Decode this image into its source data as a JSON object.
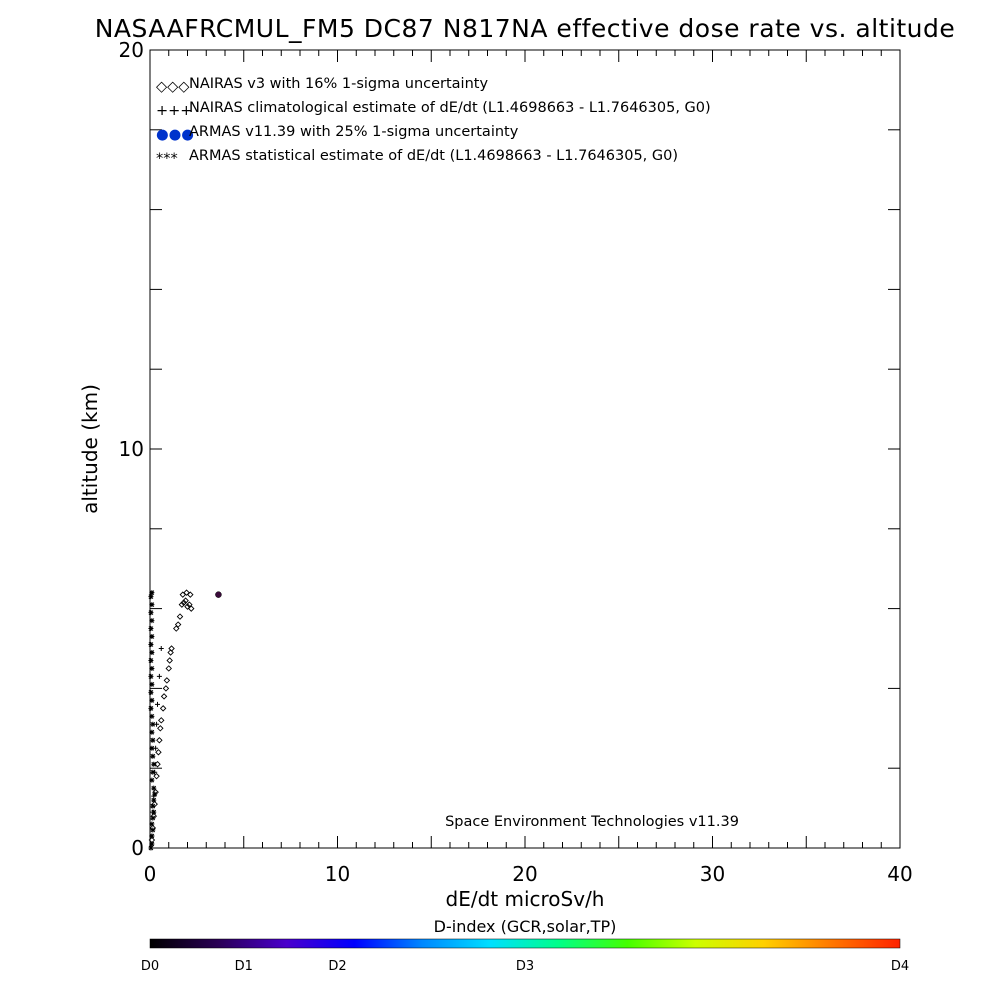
{
  "chart_data": {
    "type": "scatter",
    "title": "NASAAFRCMUL_FM5 DC87 N817NA effective dose rate vs. altitude",
    "xlabel": "dE/dt microSv/h",
    "ylabel": "altitude (km)",
    "xlim": [
      0,
      40
    ],
    "ylim": [
      0,
      20
    ],
    "x_ticks": [
      "0",
      "10",
      "20",
      "30",
      "40"
    ],
    "y_ticks": [
      "0",
      "10",
      "20"
    ],
    "legend": [
      {
        "marker": "◇◇◇",
        "label": "NAIRAS v3 with 16% 1-sigma uncertainty",
        "color": "#000000"
      },
      {
        "marker": "+++",
        "label": "NAIRAS climatological estimate of dE/dt (L1.4698663 - L1.7646305, G0)",
        "color": "#000000"
      },
      {
        "marker": "●●●",
        "label": "ARMAS v11.39 with 25% 1-sigma uncertainty",
        "color": "#0033cc"
      },
      {
        "marker": "***",
        "label": "ARMAS statistical estimate of dE/dt (L1.4698663 - L1.7646305, G0)",
        "color": "#000000"
      }
    ],
    "legend_position": "top-left",
    "annotation": "Space Environment Technologies v11.39",
    "series": [
      {
        "name": "NAIRAS v3 with 16% 1-sigma uncertainty",
        "marker": "diamond",
        "points": [
          [
            0.1,
            0.2
          ],
          [
            0.15,
            0.5
          ],
          [
            0.2,
            0.8
          ],
          [
            0.25,
            1.1
          ],
          [
            0.3,
            1.4
          ],
          [
            0.35,
            1.8
          ],
          [
            0.4,
            2.1
          ],
          [
            0.45,
            2.4
          ],
          [
            0.5,
            2.7
          ],
          [
            0.55,
            3.0
          ],
          [
            0.6,
            3.2
          ],
          [
            0.7,
            3.5
          ],
          [
            0.75,
            3.8
          ],
          [
            0.85,
            4.0
          ],
          [
            0.9,
            4.2
          ],
          [
            1.0,
            4.5
          ],
          [
            1.05,
            4.7
          ],
          [
            1.1,
            4.9
          ],
          [
            1.15,
            5.0
          ],
          [
            1.4,
            5.5
          ],
          [
            1.5,
            5.6
          ],
          [
            1.6,
            5.8
          ],
          [
            1.7,
            6.1
          ],
          [
            1.8,
            6.15
          ],
          [
            1.9,
            6.2
          ],
          [
            2.0,
            6.05
          ],
          [
            2.1,
            6.1
          ],
          [
            2.2,
            6.0
          ],
          [
            1.75,
            6.35
          ],
          [
            1.95,
            6.4
          ],
          [
            2.15,
            6.35
          ]
        ]
      },
      {
        "name": "NAIRAS climatological estimate of dE/dt (L1.4698663 - L1.7646305, G0)",
        "marker": "plus",
        "points": [
          [
            0.1,
            0.3
          ],
          [
            0.15,
            0.9
          ],
          [
            0.2,
            1.3
          ],
          [
            0.25,
            1.9
          ],
          [
            0.3,
            2.5
          ],
          [
            0.35,
            3.1
          ],
          [
            0.4,
            3.6
          ],
          [
            0.5,
            4.3
          ],
          [
            0.6,
            5.0
          ]
        ]
      },
      {
        "name": "ARMAS statistical estimate of dE/dt (L1.4698663 - L1.7646305, G0)",
        "marker": "asterisk",
        "points": [
          [
            0.05,
            0.0
          ],
          [
            0.1,
            0.1
          ],
          [
            0.1,
            0.3
          ],
          [
            0.15,
            0.45
          ],
          [
            0.1,
            0.6
          ],
          [
            0.15,
            0.75
          ],
          [
            0.2,
            0.9
          ],
          [
            0.15,
            1.05
          ],
          [
            0.2,
            1.2
          ],
          [
            0.25,
            1.35
          ],
          [
            0.2,
            1.5
          ],
          [
            0.1,
            1.7
          ],
          [
            0.15,
            1.9
          ],
          [
            0.2,
            2.1
          ],
          [
            0.15,
            2.3
          ],
          [
            0.1,
            2.5
          ],
          [
            0.15,
            2.7
          ],
          [
            0.1,
            2.9
          ],
          [
            0.15,
            3.1
          ],
          [
            0.1,
            3.3
          ],
          [
            0.05,
            3.5
          ],
          [
            0.1,
            3.7
          ],
          [
            0.05,
            3.9
          ],
          [
            0.1,
            4.1
          ],
          [
            0.05,
            4.3
          ],
          [
            0.1,
            4.5
          ],
          [
            0.05,
            4.7
          ],
          [
            0.1,
            4.9
          ],
          [
            0.05,
            5.1
          ],
          [
            0.1,
            5.3
          ],
          [
            0.05,
            5.5
          ],
          [
            0.1,
            5.7
          ],
          [
            0.05,
            5.9
          ],
          [
            0.1,
            6.1
          ],
          [
            0.05,
            6.3
          ],
          [
            0.1,
            6.4
          ]
        ]
      },
      {
        "name": "ARMAS v11.39 with 25% 1-sigma uncertainty",
        "marker": "dot",
        "color_by_dindex": true,
        "points": [
          [
            3.65,
            6.35
          ]
        ]
      }
    ],
    "colorbar": {
      "title": "D-index (GCR,solar,TP)",
      "labels": [
        "D0",
        "D1",
        "D2",
        "D3",
        "D4"
      ],
      "label_fractions": [
        0.0,
        0.125,
        0.25,
        0.5,
        1.0
      ],
      "gradient_stops": [
        "#000000",
        "#2a0055",
        "#4a00cc",
        "#0000ff",
        "#0088ff",
        "#00e0ff",
        "#00ff88",
        "#44ff00",
        "#ccff00",
        "#ffd000",
        "#ff7700",
        "#ff2200"
      ]
    }
  }
}
